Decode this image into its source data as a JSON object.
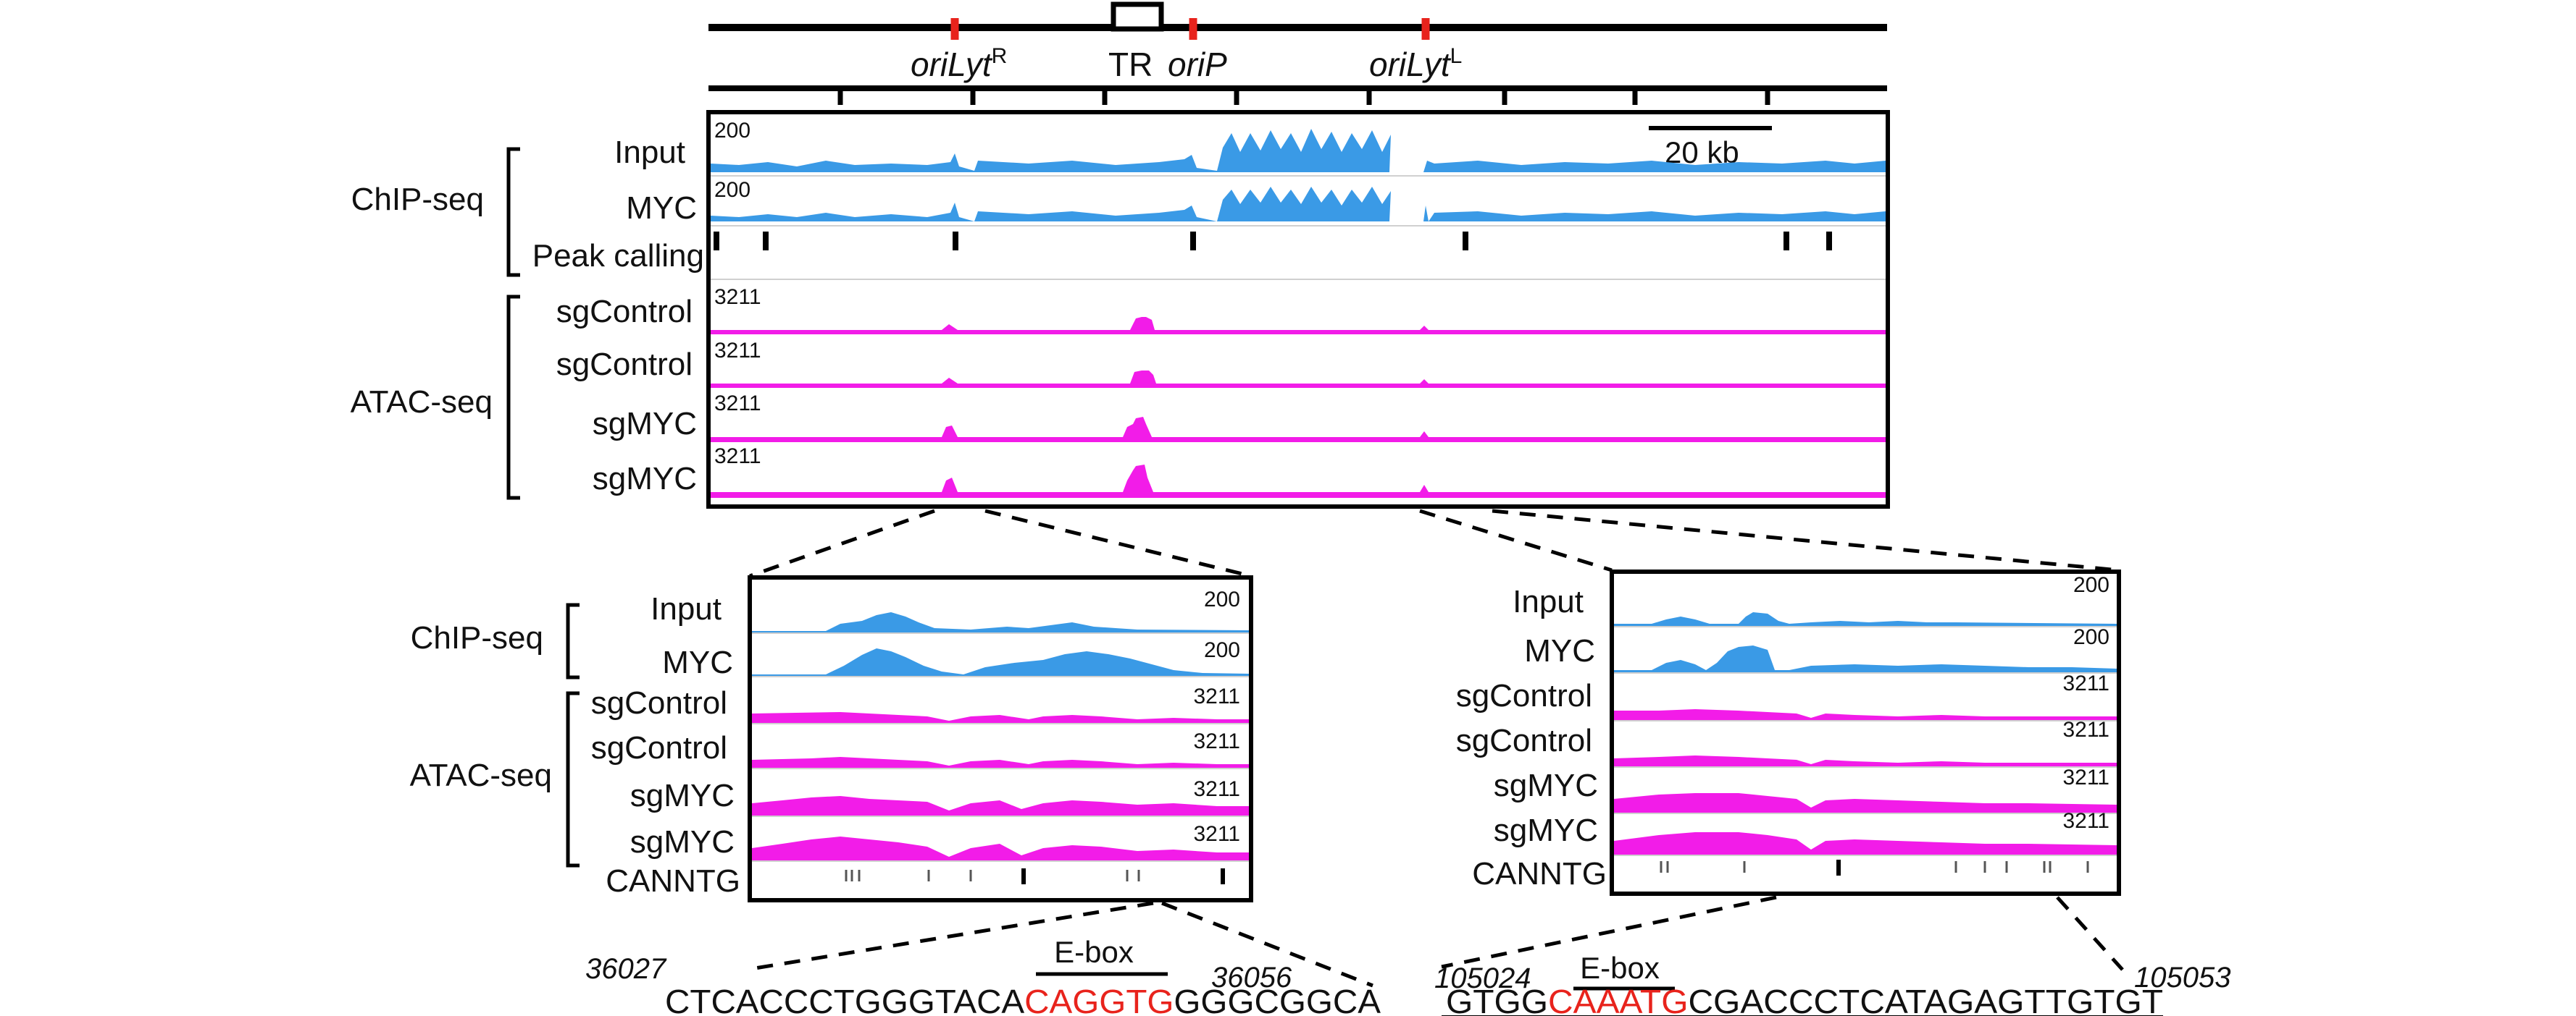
{
  "genome": {
    "features": [
      "oriLyt",
      "R",
      "TR",
      "oriP",
      "oriLyt",
      "L"
    ],
    "scale_bar": "20 kb"
  },
  "sections": {
    "chip": "ChIP-seq",
    "atac": "ATAC-seq"
  },
  "main": {
    "scales": {
      "chip": "200",
      "atac": "3211"
    },
    "tracks": [
      "Input",
      "MYC",
      "Peak calling",
      "sgControl",
      "sgControl",
      "sgMYC",
      "sgMYC"
    ]
  },
  "zoom_left": {
    "tracks": [
      "Input",
      "MYC",
      "sgControl",
      "sgControl",
      "sgMYC",
      "sgMYC",
      "CANNTG"
    ],
    "scales": [
      "200",
      "200",
      "3211",
      "3211",
      "3211",
      "3211"
    ],
    "coords": [
      "36027",
      "36056"
    ],
    "ebox": "E-box",
    "sequence": {
      "before": "CTCACCCTGGGTACA",
      "motif": "CAGGTG",
      "after": "GGGCGGCA"
    }
  },
  "zoom_right": {
    "tracks": [
      "Input",
      "MYC",
      "sgControl",
      "sgControl",
      "sgMYC",
      "sgMYC",
      "CANNTG"
    ],
    "scales": [
      "200",
      "200",
      "3211",
      "3211",
      "3211",
      "3211"
    ],
    "coords": [
      "105024",
      "105053"
    ],
    "ebox": "E-box",
    "sequence": {
      "before": "GTGG",
      "motif": "CAAATG",
      "after": "CGACCCTCATAGAGTTGTGT"
    }
  },
  "colors": {
    "chip": "#3a9ae6",
    "atac": "#f21ce8",
    "motif": "#e8231c",
    "text": "#111111"
  }
}
